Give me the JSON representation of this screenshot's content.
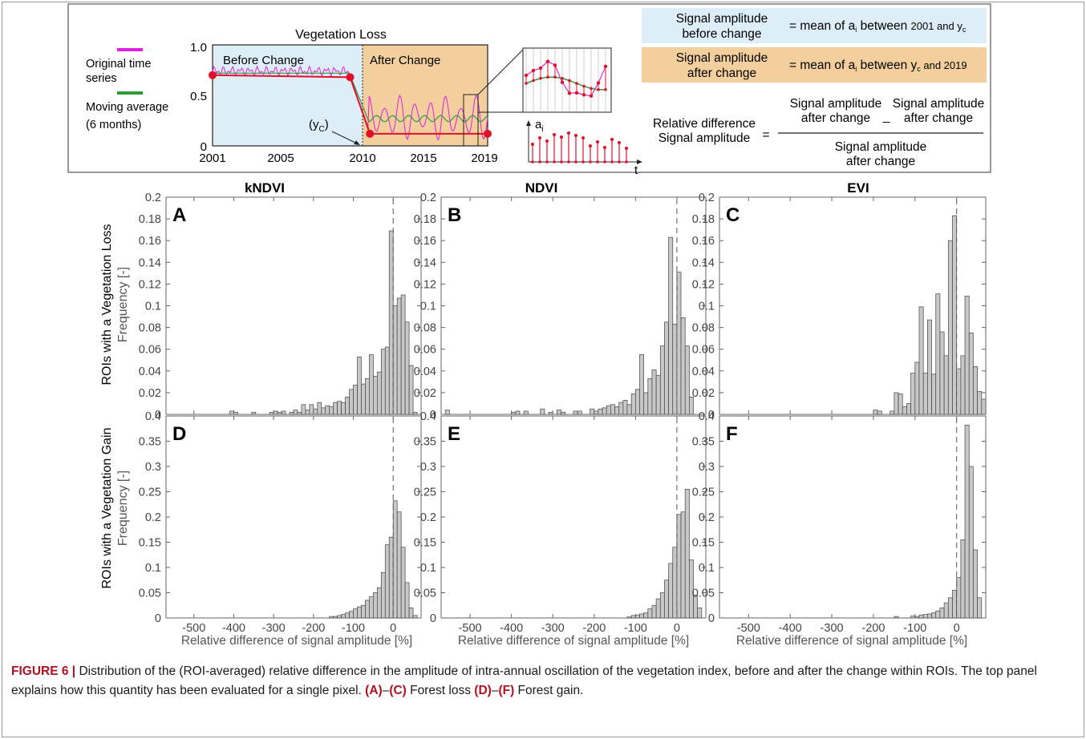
{
  "schematic": {
    "title": "Vegetation Loss",
    "legend": [
      {
        "label": [
          "Original time",
          "series"
        ],
        "color": "#e020e0"
      },
      {
        "label": [
          "Moving average",
          "(6 months)"
        ],
        "color": "#2e9a3a"
      }
    ],
    "region_labels": [
      "Before Change",
      "After Change"
    ],
    "y_ticks": [
      "0",
      "0.5",
      "1.0"
    ],
    "x_ticks": [
      "2001",
      "2005",
      "2010",
      "2015",
      "2019"
    ],
    "yc_label": "(y",
    "yc_sub": "C",
    "ai_label": "a",
    "ai_sub": "i",
    "t_label": "t",
    "eq1_lhs": [
      "Signal amplitude",
      "before change"
    ],
    "eq1_rhs": [
      "= mean of a",
      "i",
      " between ",
      "2001 and y",
      "c"
    ],
    "eq2_lhs": [
      "Signal amplitude",
      "after change"
    ],
    "eq2_rhs": [
      "= mean of a",
      "i",
      " between ",
      "y",
      "c",
      " and 2019"
    ],
    "eq3_lhs": [
      "Relative difference",
      "Signal amplitude"
    ],
    "eq3_equals": "=",
    "eq3_num_left": [
      "Signal amplitude",
      "after change"
    ],
    "eq3_minus": "_",
    "eq3_num_right": [
      "Signal amplitude",
      "after change"
    ],
    "eq3_den": [
      "Signal amplitude",
      "after change"
    ],
    "colors": {
      "before_bg": "#ddeef8",
      "after_bg": "#f2cf9c",
      "red": "#e0102a"
    }
  },
  "column_titles": [
    "kNDVI",
    "NDVI",
    "EVI"
  ],
  "row_labels": [
    [
      "ROIs with a Vegetation Loss",
      "Frequency [-]"
    ],
    [
      "ROIs with a Vegetation Gain",
      "Frequency [-]"
    ]
  ],
  "xlabel": "Relative difference of signal amplitude [%]",
  "chart_data": [
    {
      "type": "bar",
      "panel": "A",
      "xlim": [
        -570,
        70
      ],
      "ylim": [
        0,
        0.2
      ],
      "yticks": [
        "0",
        "0.02",
        "0.04",
        "0.06",
        "0.08",
        "0.1",
        "0.12",
        "0.14",
        "0.16",
        "0.18",
        "0.2"
      ],
      "xticks": [
        "-500",
        "-400",
        "-300",
        "-200",
        "-100",
        "0"
      ],
      "bins": [
        [
          -410,
          0.003
        ],
        [
          -400,
          0.002
        ],
        [
          -355,
          0.002
        ],
        [
          -310,
          0.002
        ],
        [
          -300,
          0.003
        ],
        [
          -290,
          0.002
        ],
        [
          -280,
          0.003
        ],
        [
          -260,
          0.002
        ],
        [
          -250,
          0.004
        ],
        [
          -240,
          0.002
        ],
        [
          -230,
          0.009
        ],
        [
          -220,
          0.004
        ],
        [
          -210,
          0.009
        ],
        [
          -200,
          0.005
        ],
        [
          -190,
          0.011
        ],
        [
          -180,
          0.006
        ],
        [
          -170,
          0.008
        ],
        [
          -160,
          0.007
        ],
        [
          -150,
          0.011
        ],
        [
          -140,
          0.012
        ],
        [
          -130,
          0.011
        ],
        [
          -120,
          0.016
        ],
        [
          -110,
          0.023
        ],
        [
          -100,
          0.027
        ],
        [
          -90,
          0.053
        ],
        [
          -80,
          0.028
        ],
        [
          -70,
          0.033
        ],
        [
          -60,
          0.055
        ],
        [
          -50,
          0.035
        ],
        [
          -40,
          0.039
        ],
        [
          -30,
          0.06
        ],
        [
          -20,
          0.062
        ],
        [
          -10,
          0.169
        ],
        [
          0,
          0.1
        ],
        [
          10,
          0.107
        ],
        [
          20,
          0.11
        ],
        [
          30,
          0.085
        ],
        [
          40,
          0.045
        ],
        [
          50,
          0.002
        ]
      ]
    },
    {
      "type": "bar",
      "panel": "B",
      "xlim": [
        -570,
        70
      ],
      "ylim": [
        0,
        0.2
      ],
      "yticks": [
        "0",
        "0.02",
        "0.04",
        "0.06",
        "0.08",
        "0.1",
        "0.12",
        "0.14",
        "0.16",
        "0.18",
        "0.2"
      ],
      "xticks": [
        "-500",
        "-400",
        "-300",
        "-200",
        "-100",
        "0"
      ],
      "bins": [
        [
          -560,
          0.004
        ],
        [
          -400,
          0.002
        ],
        [
          -390,
          0.003
        ],
        [
          -370,
          0.003
        ],
        [
          -330,
          0.005
        ],
        [
          -310,
          0.002
        ],
        [
          -290,
          0.004
        ],
        [
          -280,
          0.002
        ],
        [
          -250,
          0.003
        ],
        [
          -240,
          0.003
        ],
        [
          -210,
          0.005
        ],
        [
          -200,
          0.003
        ],
        [
          -190,
          0.005
        ],
        [
          -180,
          0.006
        ],
        [
          -170,
          0.008
        ],
        [
          -160,
          0.009
        ],
        [
          -150,
          0.007
        ],
        [
          -140,
          0.011
        ],
        [
          -130,
          0.013
        ],
        [
          -120,
          0.009
        ],
        [
          -110,
          0.019
        ],
        [
          -100,
          0.023
        ],
        [
          -90,
          0.055
        ],
        [
          -80,
          0.02
        ],
        [
          -70,
          0.033
        ],
        [
          -60,
          0.041
        ],
        [
          -50,
          0.036
        ],
        [
          -40,
          0.063
        ],
        [
          -30,
          0.085
        ],
        [
          -20,
          0.163
        ],
        [
          -10,
          0.083
        ],
        [
          0,
          0.131
        ],
        [
          10,
          0.089
        ],
        [
          20,
          0.063
        ],
        [
          30,
          0.016
        ]
      ]
    },
    {
      "type": "bar",
      "panel": "C",
      "xlim": [
        -570,
        70
      ],
      "ylim": [
        0,
        0.2
      ],
      "yticks": [
        "0",
        "0.02",
        "0.04",
        "0.06",
        "0.08",
        "0.1",
        "0.12",
        "0.14",
        "0.16",
        "0.18",
        "0.2"
      ],
      "xticks": [
        "-500",
        "-400",
        "-300",
        "-200",
        "-100",
        "0"
      ],
      "bins": [
        [
          -200,
          0.004
        ],
        [
          -190,
          0.003
        ],
        [
          -160,
          0.003
        ],
        [
          -150,
          0.02
        ],
        [
          -140,
          0.019
        ],
        [
          -130,
          0.007
        ],
        [
          -120,
          0.01
        ],
        [
          -110,
          0.038
        ],
        [
          -100,
          0.048
        ],
        [
          -90,
          0.099
        ],
        [
          -80,
          0.038
        ],
        [
          -70,
          0.087
        ],
        [
          -60,
          0.037
        ],
        [
          -50,
          0.111
        ],
        [
          -40,
          0.076
        ],
        [
          -30,
          0.054
        ],
        [
          -20,
          0.16
        ],
        [
          -10,
          0.183
        ],
        [
          0,
          0.042
        ],
        [
          10,
          0.054
        ],
        [
          20,
          0.109
        ],
        [
          30,
          0.075
        ],
        [
          40,
          0.044
        ],
        [
          50,
          0.021
        ],
        [
          60,
          0.014
        ]
      ]
    },
    {
      "type": "bar",
      "panel": "D",
      "xlim": [
        -570,
        70
      ],
      "ylim": [
        0,
        0.4
      ],
      "yticks": [
        "0",
        "0.05",
        "0.1",
        "0.15",
        "0.2",
        "0.25",
        "0.3",
        "0.35",
        "0.4"
      ],
      "xticks": [
        "-500",
        "-400",
        "-300",
        "-200",
        "-100",
        "0"
      ],
      "bins": [
        [
          -160,
          0.003
        ],
        [
          -150,
          0.003
        ],
        [
          -140,
          0.005
        ],
        [
          -130,
          0.007
        ],
        [
          -120,
          0.01
        ],
        [
          -110,
          0.013
        ],
        [
          -100,
          0.018
        ],
        [
          -90,
          0.022
        ],
        [
          -80,
          0.025
        ],
        [
          -70,
          0.035
        ],
        [
          -60,
          0.042
        ],
        [
          -50,
          0.05
        ],
        [
          -40,
          0.06
        ],
        [
          -30,
          0.09
        ],
        [
          -20,
          0.145
        ],
        [
          -10,
          0.16
        ],
        [
          0,
          0.232
        ],
        [
          10,
          0.21
        ],
        [
          20,
          0.14
        ],
        [
          30,
          0.07
        ],
        [
          40,
          0.02
        ],
        [
          50,
          0.005
        ]
      ]
    },
    {
      "type": "bar",
      "panel": "E",
      "xlim": [
        -570,
        70
      ],
      "ylim": [
        0,
        0.4
      ],
      "yticks": [
        "0",
        "0.05",
        "0.1",
        "0.15",
        "0.2",
        "0.25",
        "0.3",
        "0.35",
        "0.4"
      ],
      "xticks": [
        "-500",
        "-400",
        "-300",
        "-200",
        "-100",
        "0"
      ],
      "bins": [
        [
          -120,
          0.002
        ],
        [
          -110,
          0.005
        ],
        [
          -100,
          0.006
        ],
        [
          -90,
          0.008
        ],
        [
          -80,
          0.01
        ],
        [
          -70,
          0.018
        ],
        [
          -60,
          0.025
        ],
        [
          -50,
          0.038
        ],
        [
          -40,
          0.05
        ],
        [
          -30,
          0.075
        ],
        [
          -20,
          0.108
        ],
        [
          -10,
          0.14
        ],
        [
          0,
          0.205
        ],
        [
          10,
          0.21
        ],
        [
          20,
          0.255
        ],
        [
          30,
          0.115
        ],
        [
          40,
          0.045
        ],
        [
          50,
          0.02
        ]
      ]
    },
    {
      "type": "bar",
      "panel": "F",
      "xlim": [
        -570,
        70
      ],
      "ylim": [
        0,
        0.4
      ],
      "yticks": [
        "0",
        "0.05",
        "0.1",
        "0.15",
        "0.2",
        "0.25",
        "0.3",
        "0.35",
        "0.4"
      ],
      "xticks": [
        "-500",
        "-400",
        "-300",
        "-200",
        "-100",
        "0"
      ],
      "bins": [
        [
          -150,
          0.003
        ],
        [
          -110,
          0.004
        ],
        [
          -100,
          0.003
        ],
        [
          -90,
          0.006
        ],
        [
          -80,
          0.007
        ],
        [
          -70,
          0.008
        ],
        [
          -60,
          0.01
        ],
        [
          -50,
          0.014
        ],
        [
          -40,
          0.02
        ],
        [
          -30,
          0.03
        ],
        [
          -20,
          0.04
        ],
        [
          -10,
          0.055
        ],
        [
          0,
          0.08
        ],
        [
          10,
          0.155
        ],
        [
          20,
          0.382
        ],
        [
          30,
          0.3
        ],
        [
          40,
          0.135
        ],
        [
          50,
          0.04
        ]
      ]
    }
  ],
  "caption": {
    "label": "FIGURE 6 |",
    "text1": " Distribution of the (ROI-averaged) relative difference in the amplitude of intra-annual oscillation of the vegetation index, before and after the change within ROIs. The top panel explains how this quantity has been evaluated for a single pixel. ",
    "ref1": "(A)",
    "dash1": "–",
    "ref2": "(C)",
    "text2": " Forest loss ",
    "ref3": "(D)",
    "dash2": "–",
    "ref4": "(F)",
    "text3": " Forest gain."
  }
}
